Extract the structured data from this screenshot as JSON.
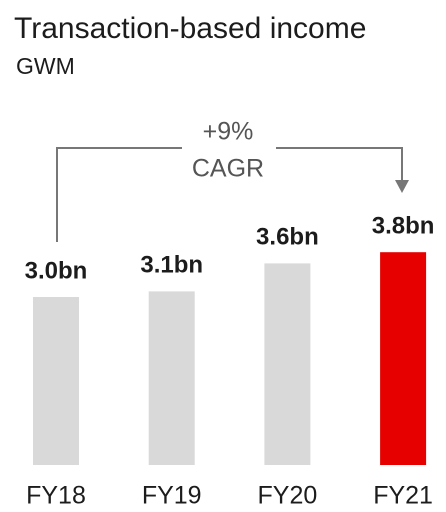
{
  "chart_data": {
    "type": "bar",
    "title": "Transaction-based income",
    "subtitle": "GWM",
    "categories": [
      "FY18",
      "FY19",
      "FY20",
      "FY21"
    ],
    "values": [
      3.0,
      3.1,
      3.6,
      3.8
    ],
    "value_labels": [
      "3.0bn",
      "3.1bn",
      "3.6bn",
      "3.8bn"
    ],
    "colors": [
      "#d9d9d9",
      "#d9d9d9",
      "#d9d9d9",
      "#e60000"
    ],
    "ylim": [
      0,
      4
    ],
    "annotation": [
      "+9%",
      "CAGR"
    ]
  }
}
